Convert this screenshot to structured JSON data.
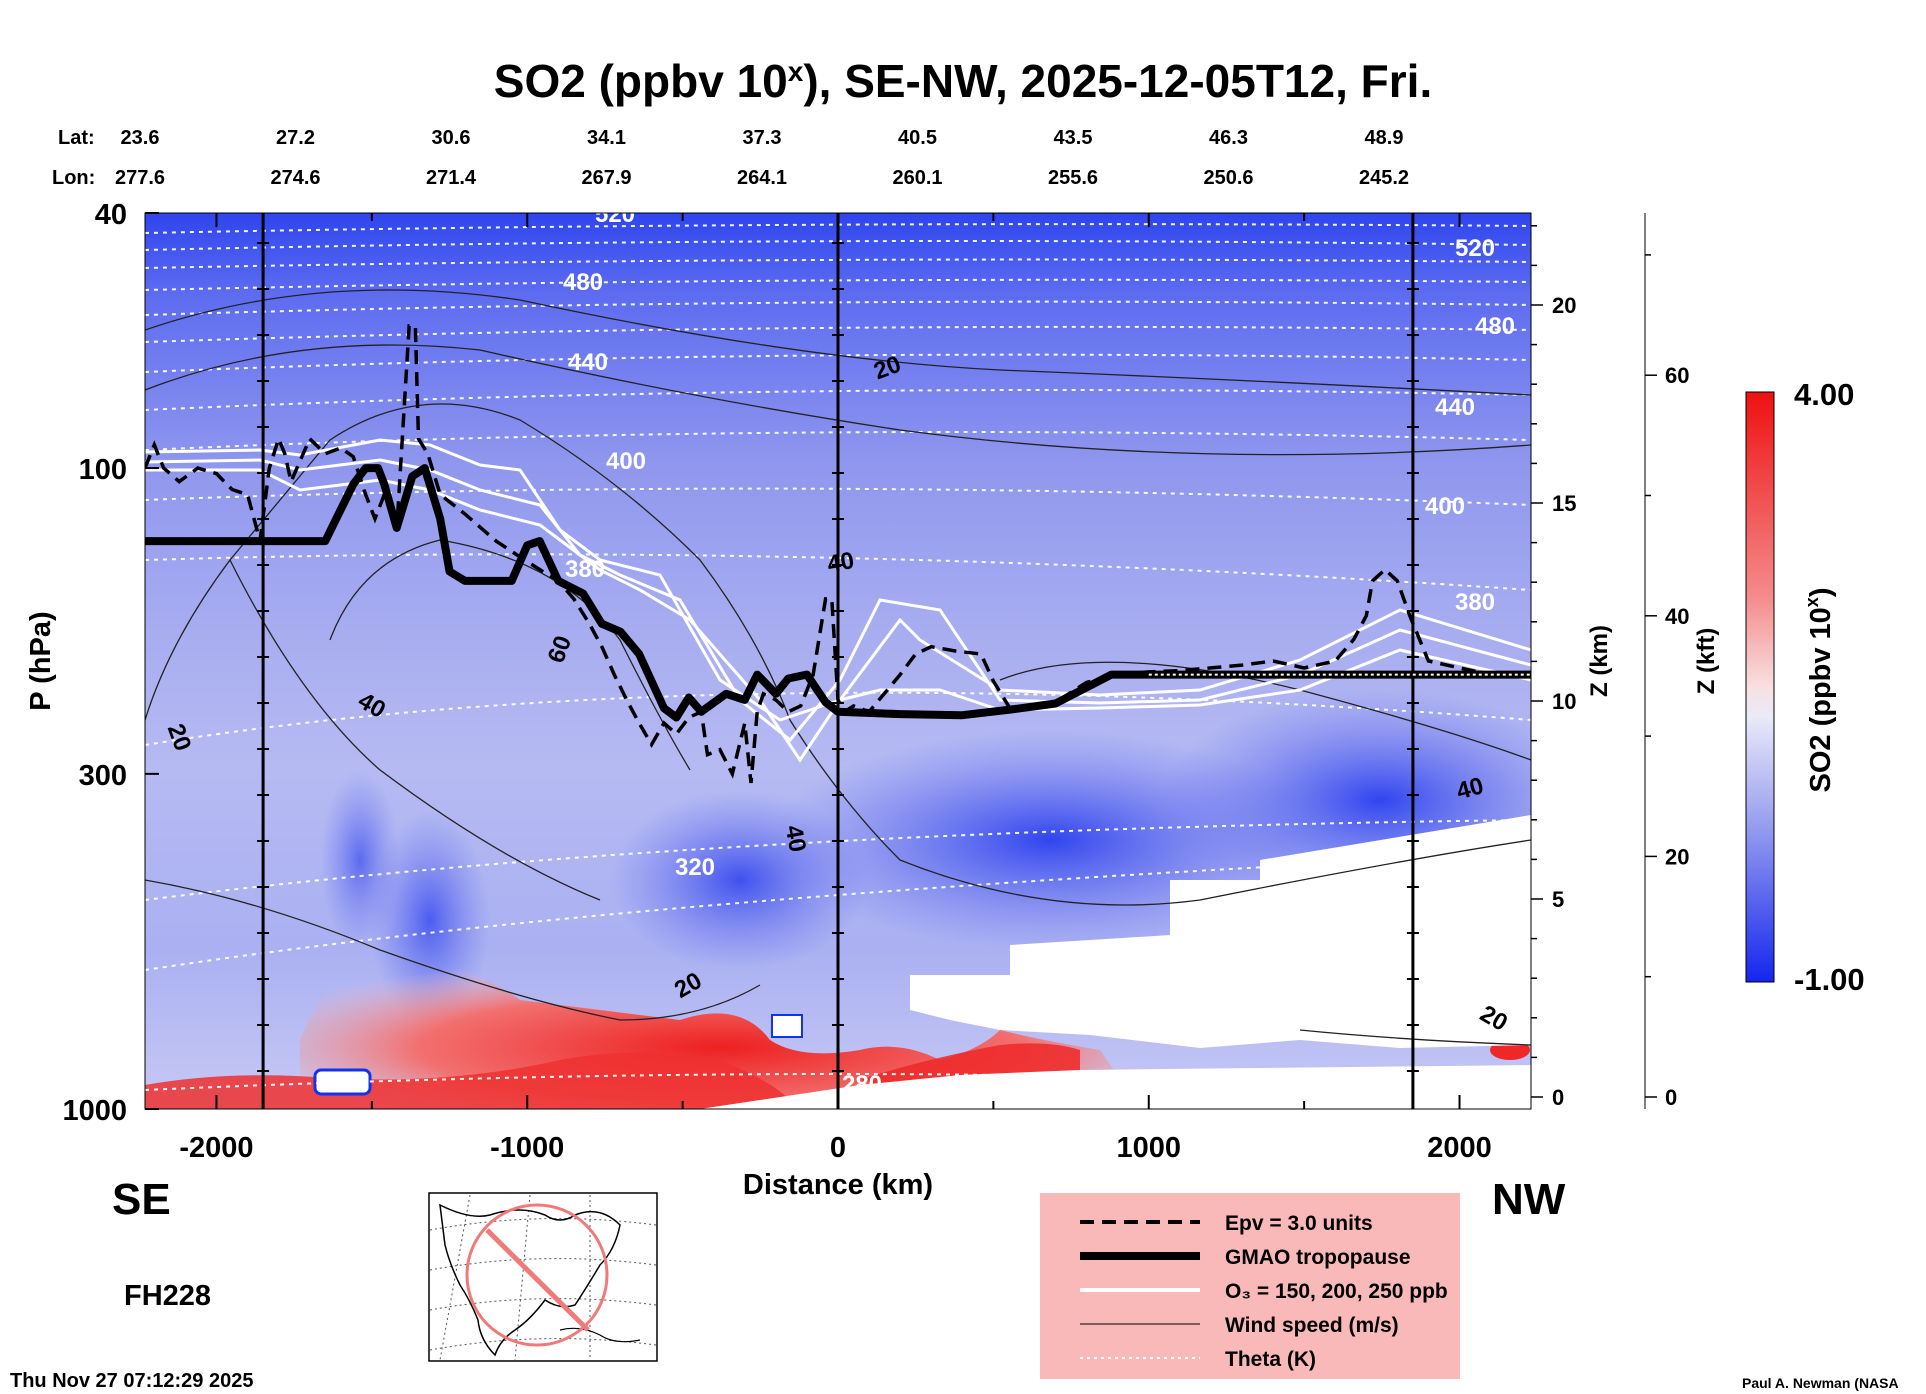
{
  "chart_data": {
    "type": "heatmap",
    "title_prefix": "SO2 (ppbv 10",
    "title_sup": "x",
    "title_suffix": "), SE-NW, 2025-12-05T12, Fri.",
    "xlabel": "Distance (km)",
    "ylabel": "P (hPa)",
    "z_km_label": "Z (km)",
    "z_kft_label": "Z (kft)",
    "colorbar_label_prefix": "SO2 (ppbv 10",
    "colorbar_label_sup": "x",
    "colorbar_label_suffix": ")",
    "colorbar_max_label": "4.00",
    "colorbar_min_label": "-1.00",
    "colorbar_range": [
      -1.0,
      4.0
    ],
    "xlim": [
      -2230,
      2230
    ],
    "ylim_hpa": [
      1000,
      40
    ],
    "log_pressure_axis": true,
    "x_ticks": [
      -2000,
      -1000,
      0,
      1000,
      2000
    ],
    "x_tick_labels": [
      "-2000",
      "-1000",
      "0",
      "1000",
      "2000"
    ],
    "p_ticks": [
      40,
      100,
      300,
      1000
    ],
    "p_tick_labels": [
      "40",
      "100",
      "300",
      "1000"
    ],
    "z_km_ticks": [
      0,
      5,
      10,
      15,
      20
    ],
    "z_km_tick_labels": [
      "0",
      "5",
      "10",
      "15",
      "20"
    ],
    "z_kft_ticks": [
      0,
      20,
      40,
      60
    ],
    "z_kft_tick_labels": [
      "0",
      "20",
      "40",
      "60"
    ],
    "vertical_lines_km": [
      -1850,
      0,
      1850
    ],
    "lat_label": "Lat:",
    "lon_label": "Lon:",
    "lat_values": [
      "23.6",
      "27.2",
      "30.6",
      "34.1",
      "37.3",
      "40.5",
      "43.5",
      "46.3",
      "48.9"
    ],
    "lon_values": [
      "277.6",
      "274.6",
      "271.4",
      "267.9",
      "264.1",
      "260.1",
      "255.6",
      "250.6",
      "245.2"
    ],
    "left_end_label": "SE",
    "right_end_label": "NW",
    "tropopause": {
      "x": [
        -2230,
        -1800,
        -1650,
        -1560,
        -1520,
        -1480,
        -1460,
        -1420,
        -1370,
        -1330,
        -1280,
        -1250,
        -1200,
        -1120,
        -1050,
        -1000,
        -960,
        -900,
        -820,
        -760,
        -700,
        -640,
        -560,
        -520,
        -480,
        -440,
        -360,
        -300,
        -260,
        -200,
        -160,
        -100,
        -40,
        0,
        200,
        400,
        560,
        700,
        880,
        1000,
        1500,
        2000,
        2230
      ],
      "p": [
        130,
        130,
        130,
        106,
        100,
        100,
        106,
        124,
        103,
        100,
        120,
        145,
        150,
        150,
        150,
        132,
        130,
        150,
        157,
        175,
        180,
        195,
        237,
        245,
        228,
        240,
        225,
        230,
        210,
        225,
        213,
        210,
        232,
        240,
        242,
        243,
        238,
        233,
        210,
        210,
        210,
        210,
        210
      ]
    },
    "epv_3pvu": {
      "x": [
        -2230,
        -2200,
        -2170,
        -2120,
        -2060,
        -2000,
        -1950,
        -1900,
        -1860,
        -1830,
        -1800,
        -1780,
        -1760,
        -1700,
        -1650,
        -1600,
        -1560,
        -1520,
        -1490,
        -1460,
        -1420,
        -1380,
        -1360,
        -1350,
        -1320,
        -1280,
        -1200,
        -1100,
        -1000,
        -950,
        -900,
        -850,
        -800,
        -760,
        -720,
        -680,
        -640,
        -600,
        -560,
        -520,
        -480,
        -440,
        -420,
        -380,
        -340,
        -300,
        -280,
        -260,
        -240,
        -200,
        -160,
        -120,
        -80,
        -40,
        -20,
        0,
        20,
        50,
        100,
        200,
        250,
        300,
        380,
        460,
        500,
        560,
        640,
        700,
        800,
        900,
        1000,
        1100,
        1200,
        1300,
        1400,
        1500,
        1600,
        1660,
        1700,
        1720,
        1760,
        1800,
        1840,
        1900,
        2000,
        2100,
        2230
      ],
      "p": [
        100,
        92,
        100,
        105,
        100,
        102,
        108,
        110,
        130,
        100,
        90,
        95,
        105,
        90,
        95,
        93,
        96,
        110,
        120,
        110,
        125,
        60,
        60,
        90,
        95,
        110,
        118,
        130,
        140,
        145,
        150,
        160,
        175,
        190,
        210,
        230,
        250,
        270,
        250,
        260,
        245,
        240,
        280,
        275,
        300,
        250,
        310,
        240,
        225,
        230,
        240,
        235,
        210,
        160,
        160,
        230,
        240,
        235,
        240,
        210,
        195,
        190,
        193,
        195,
        215,
        240,
        236,
        232,
        216,
        210,
        208,
        207,
        205,
        203,
        200,
        205,
        200,
        185,
        170,
        150,
        144,
        150,
        170,
        200,
        205,
        210,
        210
      ]
    },
    "ozone_contours_ppb": [
      150,
      200,
      250
    ],
    "wind_speed_labels": [
      "20",
      "40",
      "60"
    ],
    "theta_labels": [
      "520",
      "480",
      "440",
      "400",
      "380",
      "320",
      "280"
    ],
    "forecast_hour": "FH228",
    "timestamp": "Thu Nov 27 07:12:29 2025",
    "credit": "Paul A. Newman (NASA",
    "legend": [
      {
        "style": "dashed",
        "label": "Epv = 3.0 units"
      },
      {
        "style": "thick",
        "label": "GMAO tropopause"
      },
      {
        "style": "white",
        "label": "O₃ = 150, 200, 250 ppb"
      },
      {
        "style": "thin",
        "label": "Wind speed (m/s)"
      },
      {
        "style": "dotted",
        "label": "Theta (K)"
      }
    ],
    "colors": {
      "high": "#ee1111",
      "low": "#1133ee",
      "background_field": "#8f97ee",
      "legend_bg": "#f9b9b9"
    }
  }
}
